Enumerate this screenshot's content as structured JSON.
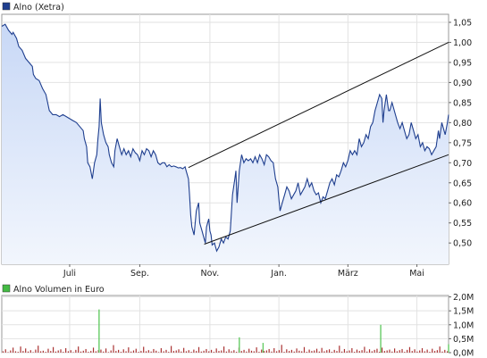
{
  "chart_data": [
    {
      "type": "area",
      "legend": "Alno (Xetra)",
      "legend_color": "#1f3f8f",
      "line_color": "#1f3f8f",
      "fill_top": "#c8d8f6",
      "fill_bottom": "#f2f6fd",
      "y_ticks": [
        "1,05",
        "1,00",
        "0,95",
        "0,90",
        "0,85",
        "0,80",
        "0,75",
        "0,70",
        "0,65",
        "0,60",
        "0,55",
        "0,50"
      ],
      "y_tick_values": [
        1.05,
        1.0,
        0.95,
        0.9,
        0.85,
        0.8,
        0.75,
        0.7,
        0.65,
        0.6,
        0.55,
        0.5
      ],
      "ylim": [
        0.447,
        1.07
      ],
      "x_ticks": [
        "Juli",
        "Sep.",
        "Nov.",
        "Jan.",
        "März",
        "Mai"
      ],
      "x_tick_positions": [
        60,
        122,
        184,
        245,
        306,
        367
      ],
      "xlim": [
        0,
        395
      ],
      "grid": true,
      "price": [
        [
          0,
          1.04
        ],
        [
          3,
          1.045
        ],
        [
          6,
          1.03
        ],
        [
          9,
          1.02
        ],
        [
          10,
          1.025
        ],
        [
          13,
          1.01
        ],
        [
          15,
          0.99
        ],
        [
          18,
          0.98
        ],
        [
          21,
          0.96
        ],
        [
          24,
          0.95
        ],
        [
          27,
          0.94
        ],
        [
          28,
          0.92
        ],
        [
          30,
          0.91
        ],
        [
          33,
          0.905
        ],
        [
          36,
          0.885
        ],
        [
          39,
          0.87
        ],
        [
          42,
          0.83
        ],
        [
          45,
          0.82
        ],
        [
          48,
          0.82
        ],
        [
          51,
          0.815
        ],
        [
          54,
          0.82
        ],
        [
          57,
          0.815
        ],
        [
          60,
          0.81
        ],
        [
          63,
          0.805
        ],
        [
          66,
          0.8
        ],
        [
          69,
          0.79
        ],
        [
          72,
          0.78
        ],
        [
          73,
          0.76
        ],
        [
          75,
          0.74
        ],
        [
          76,
          0.7
        ],
        [
          78,
          0.69
        ],
        [
          80,
          0.66
        ],
        [
          82,
          0.7
        ],
        [
          84,
          0.72
        ],
        [
          85,
          0.76
        ],
        [
          86,
          0.79
        ],
        [
          87,
          0.86
        ],
        [
          88,
          0.8
        ],
        [
          90,
          0.77
        ],
        [
          92,
          0.75
        ],
        [
          94,
          0.74
        ],
        [
          95,
          0.72
        ],
        [
          97,
          0.7
        ],
        [
          99,
          0.69
        ],
        [
          100,
          0.73
        ],
        [
          102,
          0.76
        ],
        [
          104,
          0.74
        ],
        [
          106,
          0.72
        ],
        [
          108,
          0.735
        ],
        [
          110,
          0.72
        ],
        [
          112,
          0.73
        ],
        [
          114,
          0.715
        ],
        [
          116,
          0.735
        ],
        [
          118,
          0.725
        ],
        [
          120,
          0.72
        ],
        [
          122,
          0.705
        ],
        [
          124,
          0.73
        ],
        [
          126,
          0.72
        ],
        [
          128,
          0.735
        ],
        [
          130,
          0.73
        ],
        [
          132,
          0.715
        ],
        [
          134,
          0.73
        ],
        [
          136,
          0.72
        ],
        [
          138,
          0.7
        ],
        [
          140,
          0.695
        ],
        [
          142,
          0.7
        ],
        [
          144,
          0.7
        ],
        [
          146,
          0.69
        ],
        [
          148,
          0.695
        ],
        [
          150,
          0.69
        ],
        [
          152,
          0.692
        ],
        [
          154,
          0.69
        ],
        [
          156,
          0.687
        ],
        [
          158,
          0.688
        ],
        [
          160,
          0.685
        ],
        [
          162,
          0.69
        ],
        [
          163,
          0.68
        ],
        [
          165,
          0.66
        ],
        [
          166,
          0.62
        ],
        [
          167,
          0.57
        ],
        [
          168,
          0.54
        ],
        [
          170,
          0.52
        ],
        [
          172,
          0.58
        ],
        [
          174,
          0.6
        ],
        [
          175,
          0.55
        ],
        [
          177,
          0.53
        ],
        [
          178,
          0.52
        ],
        [
          180,
          0.5
        ],
        [
          181,
          0.54
        ],
        [
          183,
          0.56
        ],
        [
          184,
          0.53
        ],
        [
          185,
          0.52
        ],
        [
          186,
          0.495
        ],
        [
          188,
          0.5
        ],
        [
          190,
          0.48
        ],
        [
          192,
          0.49
        ],
        [
          194,
          0.51
        ],
        [
          196,
          0.5
        ],
        [
          198,
          0.515
        ],
        [
          200,
          0.51
        ],
        [
          202,
          0.53
        ],
        [
          204,
          0.62
        ],
        [
          206,
          0.66
        ],
        [
          207,
          0.68
        ],
        [
          208,
          0.6
        ],
        [
          210,
          0.68
        ],
        [
          212,
          0.72
        ],
        [
          214,
          0.7
        ],
        [
          216,
          0.71
        ],
        [
          218,
          0.705
        ],
        [
          220,
          0.71
        ],
        [
          222,
          0.7
        ],
        [
          224,
          0.715
        ],
        [
          226,
          0.7
        ],
        [
          228,
          0.72
        ],
        [
          230,
          0.71
        ],
        [
          232,
          0.695
        ],
        [
          234,
          0.72
        ],
        [
          236,
          0.715
        ],
        [
          238,
          0.705
        ],
        [
          240,
          0.7
        ],
        [
          242,
          0.66
        ],
        [
          244,
          0.64
        ],
        [
          245,
          0.61
        ],
        [
          246,
          0.58
        ],
        [
          248,
          0.6
        ],
        [
          250,
          0.62
        ],
        [
          252,
          0.64
        ],
        [
          254,
          0.63
        ],
        [
          256,
          0.61
        ],
        [
          258,
          0.62
        ],
        [
          260,
          0.63
        ],
        [
          262,
          0.65
        ],
        [
          264,
          0.62
        ],
        [
          266,
          0.63
        ],
        [
          268,
          0.64
        ],
        [
          270,
          0.66
        ],
        [
          272,
          0.64
        ],
        [
          274,
          0.65
        ],
        [
          276,
          0.63
        ],
        [
          278,
          0.62
        ],
        [
          280,
          0.625
        ],
        [
          282,
          0.6
        ],
        [
          284,
          0.615
        ],
        [
          286,
          0.61
        ],
        [
          288,
          0.63
        ],
        [
          290,
          0.65
        ],
        [
          292,
          0.66
        ],
        [
          294,
          0.645
        ],
        [
          296,
          0.67
        ],
        [
          298,
          0.665
        ],
        [
          300,
          0.68
        ],
        [
          302,
          0.7
        ],
        [
          304,
          0.69
        ],
        [
          306,
          0.705
        ],
        [
          308,
          0.73
        ],
        [
          310,
          0.72
        ],
        [
          312,
          0.73
        ],
        [
          314,
          0.72
        ],
        [
          316,
          0.76
        ],
        [
          318,
          0.74
        ],
        [
          320,
          0.75
        ],
        [
          322,
          0.77
        ],
        [
          324,
          0.76
        ],
        [
          326,
          0.79
        ],
        [
          328,
          0.8
        ],
        [
          330,
          0.83
        ],
        [
          332,
          0.85
        ],
        [
          334,
          0.87
        ],
        [
          336,
          0.86
        ],
        [
          337,
          0.8
        ],
        [
          338,
          0.83
        ],
        [
          339,
          0.85
        ],
        [
          340,
          0.87
        ],
        [
          341,
          0.85
        ],
        [
          342,
          0.83
        ],
        [
          343,
          0.83
        ],
        [
          345,
          0.85
        ],
        [
          346,
          0.84
        ],
        [
          348,
          0.82
        ],
        [
          350,
          0.8
        ],
        [
          352,
          0.785
        ],
        [
          354,
          0.8
        ],
        [
          356,
          0.78
        ],
        [
          358,
          0.76
        ],
        [
          360,
          0.77
        ],
        [
          362,
          0.8
        ],
        [
          364,
          0.78
        ],
        [
          366,
          0.76
        ],
        [
          368,
          0.77
        ],
        [
          370,
          0.74
        ],
        [
          372,
          0.75
        ],
        [
          374,
          0.73
        ],
        [
          376,
          0.74
        ],
        [
          378,
          0.735
        ],
        [
          380,
          0.72
        ],
        [
          382,
          0.73
        ],
        [
          384,
          0.74
        ],
        [
          386,
          0.78
        ],
        [
          387,
          0.76
        ],
        [
          389,
          0.8
        ],
        [
          392,
          0.77
        ],
        [
          394,
          0.8
        ],
        [
          395,
          0.82
        ]
      ],
      "channel_upper": [
        [
          165,
          0.688
        ],
        [
          395,
          1.0
        ]
      ],
      "channel_lower": [
        [
          179,
          0.497
        ],
        [
          395,
          0.72
        ]
      ]
    },
    {
      "type": "bar",
      "legend": "Alno Volumen in Euro",
      "legend_color": "#44bb44",
      "bar_color": "#aa3333",
      "spike_color": "#66cc66",
      "y_ticks": [
        "2,0M",
        "1,5M",
        "1,0M",
        "0,5M",
        "0,0M"
      ],
      "y_tick_values": [
        2.0,
        1.5,
        1.0,
        0.5,
        0.0
      ],
      "ylim": [
        0,
        2.05
      ],
      "grid": true,
      "volume_baseline": [
        0.05,
        0.12,
        0.02,
        0.08,
        0.18,
        0.05,
        0.03,
        0.22,
        0.06,
        0.15,
        0.04,
        0.09,
        0.02,
        0.11,
        0.25,
        0.05,
        0.07,
        0.03,
        0.14,
        0.06,
        0.2,
        0.04,
        0.08,
        0.12,
        0.03,
        0.16,
        0.05,
        0.09,
        0.02,
        0.1,
        0.22,
        0.04,
        0.07,
        0.13,
        0.03,
        0.06,
        0.18,
        0.05,
        0.09,
        0.11,
        0.04,
        0.15,
        0.02,
        0.08,
        0.27,
        0.06,
        0.1,
        0.03,
        0.12,
        0.05,
        0.19,
        0.04,
        0.08,
        0.14,
        0.03,
        0.06,
        0.21,
        0.05,
        0.09,
        0.04,
        0.13,
        0.07,
        0.02,
        0.16,
        0.05,
        0.1,
        0.03,
        0.24,
        0.06,
        0.08,
        0.12,
        0.04,
        0.17,
        0.05,
        0.09,
        0.03,
        0.11,
        0.06,
        0.2,
        0.04,
        0.07,
        0.13,
        0.05,
        0.1,
        0.03,
        0.15,
        0.06,
        0.08,
        0.22,
        0.04,
        0.12,
        0.05,
        0.09,
        0.03,
        0.18,
        0.06,
        0.1,
        0.04,
        0.14,
        0.07,
        0.05,
        0.19,
        0.03,
        0.11,
        0.06,
        0.08,
        0.13,
        0.04,
        0.16,
        0.05,
        0.09,
        0.28,
        0.03,
        0.12,
        0.06,
        0.1,
        0.04,
        0.15,
        0.07,
        0.05,
        0.2,
        0.03,
        0.11,
        0.06,
        0.08,
        0.14,
        0.04,
        0.17,
        0.05,
        0.09,
        0.12,
        0.03,
        0.1,
        0.06,
        0.25,
        0.04,
        0.13,
        0.05,
        0.08,
        0.16,
        0.03,
        0.11,
        0.06,
        0.09,
        0.21,
        0.04,
        0.12,
        0.05,
        0.1,
        0.14,
        0.03,
        0.18,
        0.06,
        0.08,
        0.11,
        0.04,
        0.15,
        0.05,
        0.09,
        0.13,
        0.03,
        0.1,
        0.2,
        0.06,
        0.12,
        0.04,
        0.08,
        0.16,
        0.05,
        0.11,
        0.03,
        0.14,
        0.06,
        0.09,
        0.22,
        0.04,
        0.1,
        0.05
      ],
      "volume_spikes": [
        [
          86,
          1.55
        ],
        [
          210,
          0.55
        ],
        [
          335,
          1.0
        ],
        [
          231,
          0.35
        ],
        [
          395,
          0.3
        ]
      ]
    }
  ]
}
